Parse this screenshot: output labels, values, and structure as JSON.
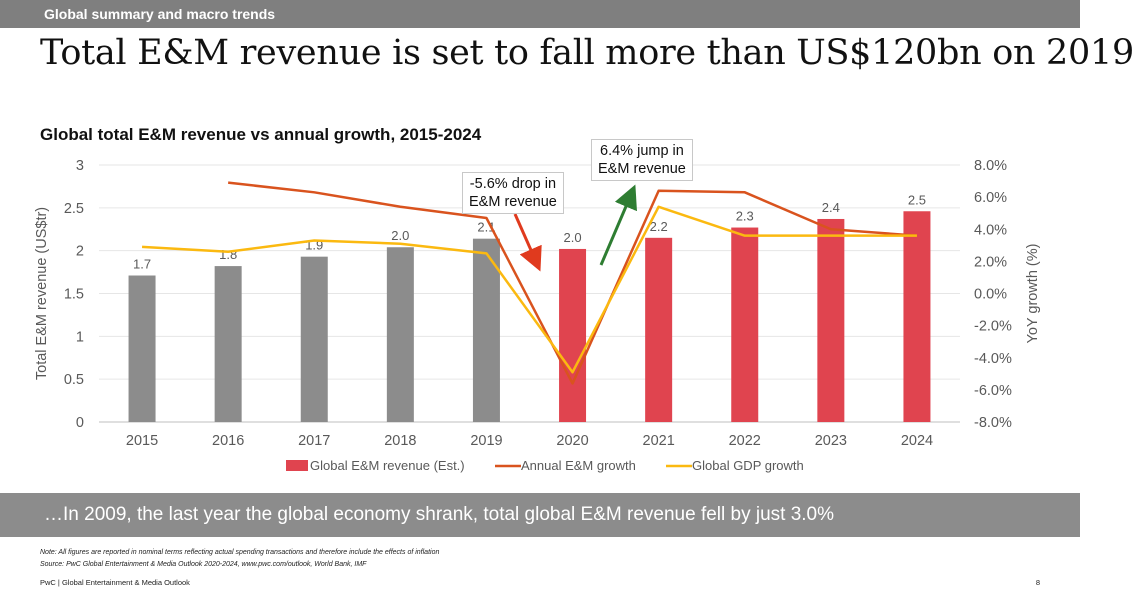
{
  "header": {
    "section": "Global summary and macro trends"
  },
  "slide_title": "Total E&M revenue is set to fall more than US$120bn on 2019",
  "callouts": {
    "drop": [
      "-5.6% drop in",
      "E&M revenue"
    ],
    "jump": [
      "6.4% jump in",
      "E&M revenue"
    ]
  },
  "banner": "…In 2009, the last year the global economy shrank, total global E&M revenue fell by just 3.0%",
  "notes": {
    "note": "Note: All figures are reported in nominal terms reflecting actual spending transactions and therefore include the effects of inflation",
    "source": "Source: PwC Global Entertainment & Media Outlook 2020-2024, www.pwc.com/outlook, World Bank, IMF"
  },
  "footer": {
    "text": "PwC | Global Entertainment & Media Outlook",
    "page": "8"
  },
  "colors": {
    "bar_actual": "#8c8c8c",
    "bar_estimate": "#e0444f",
    "em_growth": "#d9531e",
    "gdp_growth": "#fbb910",
    "arrow_drop": "#e03a1e",
    "arrow_jump": "#2e7d32"
  },
  "chart_data": {
    "type": "bar",
    "title": "Global total E&M revenue vs annual growth, 2015-2024",
    "categories": [
      "2015",
      "2016",
      "2017",
      "2018",
      "2019",
      "2020",
      "2021",
      "2022",
      "2023",
      "2024"
    ],
    "ylabel": "Total E&M revenue (US$tr)",
    "y2label": "YoY growth (%)",
    "ylim": [
      0,
      3
    ],
    "yticks": [
      "0",
      "0.5",
      "1",
      "1.5",
      "2",
      "2.5",
      "3"
    ],
    "y2lim": [
      -8,
      8
    ],
    "y2ticks": [
      "-8.0%",
      "-6.0%",
      "-4.0%",
      "-2.0%",
      "0.0%",
      "2.0%",
      "4.0%",
      "6.0%",
      "8.0%"
    ],
    "grid": true,
    "legend_position": "bottom",
    "series": [
      {
        "name": "Global E&M revenue (Est.)",
        "kind": "bar",
        "axis": "left",
        "values": [
          1.7,
          1.8,
          1.9,
          2.0,
          2.1,
          2.0,
          2.2,
          2.3,
          2.4,
          2.5
        ],
        "plotted_values": [
          1.71,
          1.82,
          1.93,
          2.04,
          2.14,
          2.02,
          2.15,
          2.27,
          2.37,
          2.46
        ],
        "data_labels": [
          "1.7",
          "1.8",
          "1.9",
          "2.0",
          "2.1",
          "2.0",
          "2.2",
          "2.3",
          "2.4",
          "2.5"
        ],
        "estimate_from_index": 5
      },
      {
        "name": "Annual E&M growth",
        "kind": "line",
        "axis": "right",
        "values": [
          null,
          6.9,
          6.3,
          5.4,
          4.7,
          -5.6,
          6.4,
          6.3,
          4.0,
          3.6
        ]
      },
      {
        "name": "Global GDP growth",
        "kind": "line",
        "axis": "right",
        "values": [
          2.9,
          2.6,
          3.3,
          3.1,
          2.5,
          -4.9,
          5.4,
          3.6,
          3.6,
          3.6
        ]
      }
    ]
  }
}
